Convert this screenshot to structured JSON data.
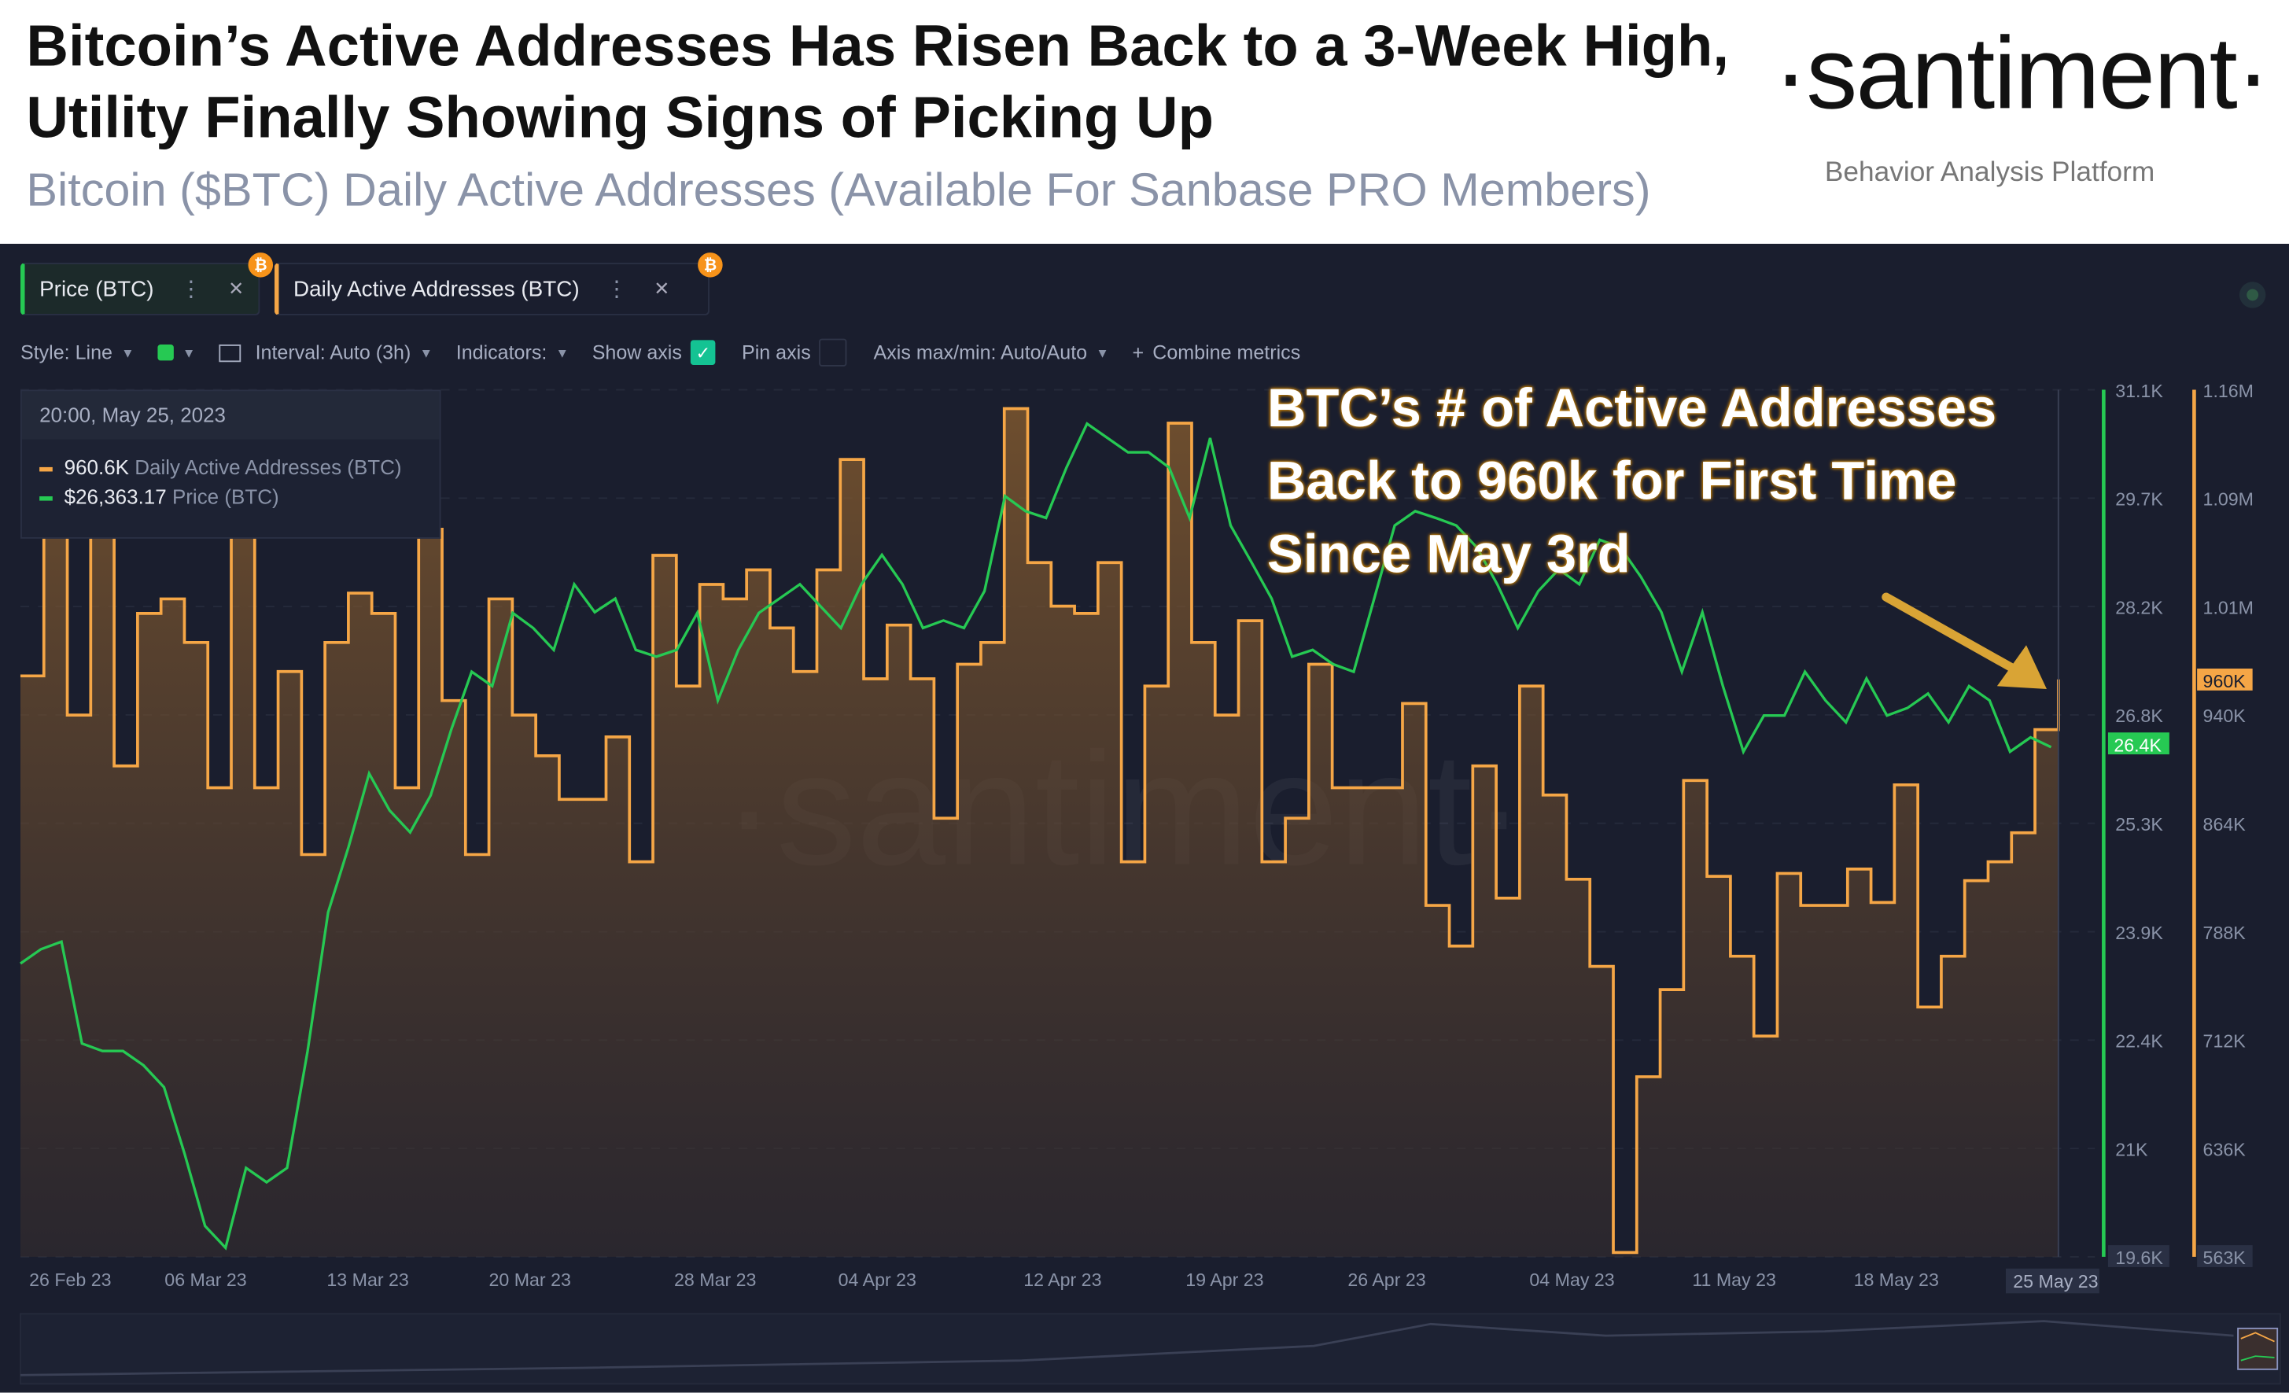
{
  "header": {
    "title": "Bitcoin’s Active Addresses Has Risen Back to a 3-Week High, Utility Finally Showing Signs of Picking Up",
    "subtitle": "Bitcoin ($BTC) Daily Active Addresses (Available For Sanbase PRO Members)",
    "logo": "·santiment·",
    "tagline": "Behavior Analysis Platform"
  },
  "tabs": [
    {
      "label": "Price (BTC)",
      "color": "#26c953",
      "badge": "₿"
    },
    {
      "label": "Daily Active Addresses (BTC)",
      "color": "#f5a646",
      "badge": "₿"
    }
  ],
  "toolbar": {
    "style": "Style: Line",
    "interval": "Interval: Auto (3h)",
    "indicators": "Indicators:",
    "show_axis": "Show axis",
    "show_axis_checked": true,
    "pin_axis": "Pin axis",
    "pin_axis_checked": false,
    "axis_maxmin": "Axis max/min: Auto/Auto",
    "combine": "Combine metrics"
  },
  "tooltip": {
    "date": "20:00, May 25, 2023",
    "rows": [
      {
        "value": "960.6K",
        "name": "Daily Active Addresses (BTC)"
      },
      {
        "value": "$26,363.17",
        "name": "Price (BTC)"
      }
    ]
  },
  "annotation": "BTC’s # of Active Addresses Back to 960k for First Time Since May 3rd",
  "watermark": "·santiment·",
  "chart_data": {
    "type": "line",
    "x_ticks": [
      "26 Feb 23",
      "06 Mar 23",
      "13 Mar 23",
      "20 Mar 23",
      "28 Mar 23",
      "04 Apr 23",
      "12 Apr 23",
      "19 Apr 23",
      "26 Apr 23",
      "04 May 23",
      "11 May 23",
      "18 May 23"
    ],
    "x_highlight": "25 May 23",
    "x_range": [
      "26 Feb 2023",
      "25 May 2023"
    ],
    "price_axis": {
      "ticks": [
        "31.1K",
        "29.7K",
        "28.2K",
        "26.8K",
        "25.3K",
        "23.9K",
        "22.4K",
        "21K",
        "19.6K"
      ],
      "ylim": [
        19.6,
        31.1
      ],
      "unit": "K USD",
      "current": "26.4K",
      "color": "#26c953"
    },
    "daa_axis": {
      "ticks": [
        "1.16M",
        "1.09M",
        "1.01M",
        "940K",
        "864K",
        "788K",
        "712K",
        "636K",
        "563K"
      ],
      "ylim": [
        563,
        1160
      ],
      "unit": "K",
      "current": "960K",
      "color": "#f5a646"
    },
    "series": [
      {
        "name": "Daily Active Addresses (BTC)",
        "style": "step-area",
        "values": [
          963,
          1127,
          936,
          1087,
          901,
          1006,
          1016,
          986,
          886,
          1082,
          886,
          966,
          840,
          986,
          1020,
          1006,
          886,
          1064,
          946,
          840,
          1016,
          936,
          908,
          878,
          878,
          921,
          835,
          1046,
          956,
          1026,
          1016,
          1036,
          996,
          966,
          1036,
          1112,
          961,
          998,
          961,
          865,
          971,
          986,
          1147,
          1041,
          1011,
          1006,
          1041,
          835,
          956,
          1137,
          986,
          936,
          1001,
          835,
          865,
          971,
          886,
          886,
          886,
          944,
          805,
          777,
          901,
          810,
          956,
          881,
          823,
          763,
          566,
          687,
          747,
          891,
          825,
          770,
          715,
          827,
          805,
          805,
          830,
          807,
          888,
          735,
          770,
          822,
          835,
          855,
          926,
          960.6
        ]
      },
      {
        "name": "Price (BTC)",
        "style": "line",
        "values": [
          23.49,
          23.68,
          23.78,
          22.43,
          22.33,
          22.33,
          22.14,
          21.85,
          20.97,
          20.01,
          19.72,
          20.78,
          20.59,
          20.78,
          22.33,
          24.17,
          25.04,
          26.01,
          25.52,
          25.23,
          25.72,
          26.59,
          27.36,
          27.17,
          28.14,
          27.94,
          27.65,
          28.52,
          28.15,
          28.33,
          27.65,
          27.56,
          27.65,
          28.14,
          26.98,
          27.65,
          28.14,
          28.33,
          28.52,
          28.23,
          27.94,
          28.52,
          28.91,
          28.52,
          27.94,
          28.04,
          27.94,
          28.43,
          29.69,
          29.49,
          29.4,
          30.07,
          30.65,
          30.46,
          30.27,
          30.27,
          30.07,
          29.4,
          30.46,
          29.3,
          28.82,
          28.33,
          27.56,
          27.65,
          27.46,
          27.36,
          28.33,
          29.3,
          29.49,
          29.4,
          29.3,
          29.01,
          28.52,
          27.94,
          28.43,
          28.72,
          28.52,
          29.11,
          29.01,
          28.62,
          28.15,
          27.36,
          28.15,
          27.17,
          26.3,
          26.78,
          26.78,
          27.36,
          26.98,
          26.69,
          27.27,
          26.78,
          26.88,
          27.07,
          26.69,
          27.17,
          26.98,
          26.3,
          26.49,
          26.36
        ]
      }
    ],
    "grid": true
  }
}
